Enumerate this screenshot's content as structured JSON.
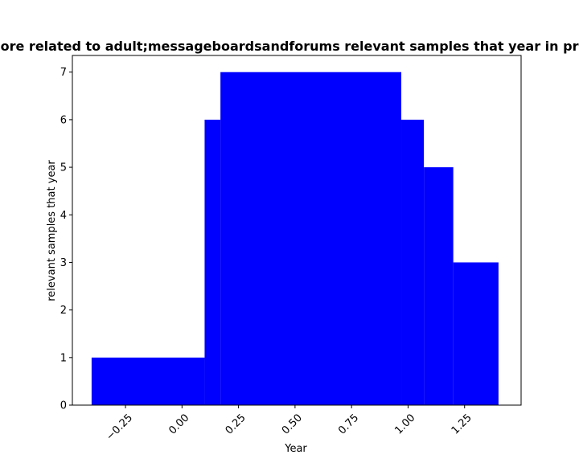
{
  "chart_data": {
    "type": "bar",
    "title": "ore related to adult;messageboardsandforums relevant samples that year in priv",
    "xlabel": "Year",
    "ylabel": "relevant samples that year",
    "bar_color": "#0000ff",
    "xlim": [
      -0.485,
      1.5
    ],
    "ylim": [
      0,
      7.35
    ],
    "xticks": [
      -0.25,
      0.0,
      0.25,
      0.5,
      0.75,
      1.0,
      1.25
    ],
    "xtick_labels": [
      "−0.25",
      "0.00",
      "0.25",
      "0.50",
      "0.75",
      "1.00",
      "1.25"
    ],
    "yticks": [
      0,
      1,
      2,
      3,
      4,
      5,
      6,
      7
    ],
    "ytick_labels": [
      "0",
      "1",
      "2",
      "3",
      "4",
      "5",
      "6",
      "7"
    ],
    "bars": [
      {
        "x0": -0.4,
        "x1": 0.1,
        "value": 1
      },
      {
        "x0": 0.1,
        "x1": 0.17,
        "value": 6
      },
      {
        "x0": 0.17,
        "x1": 0.97,
        "value": 7
      },
      {
        "x0": 0.97,
        "x1": 1.07,
        "value": 6
      },
      {
        "x0": 1.07,
        "x1": 1.2,
        "value": 5
      },
      {
        "x0": 1.2,
        "x1": 1.4,
        "value": 3
      }
    ]
  }
}
